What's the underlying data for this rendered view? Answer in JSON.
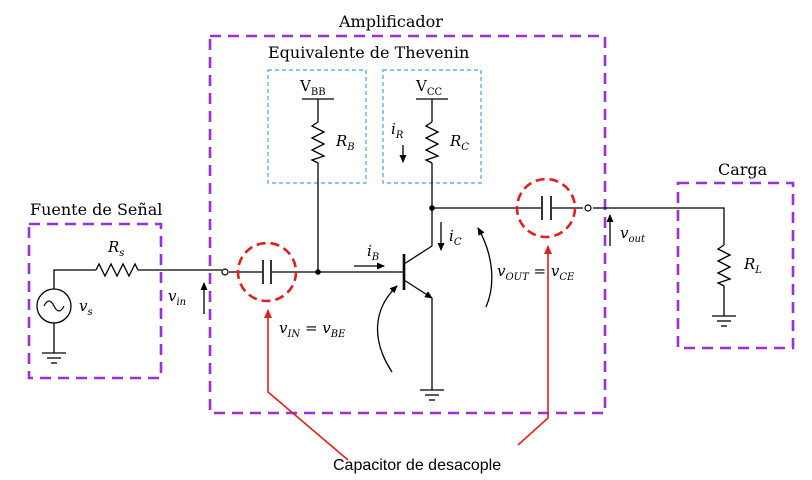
{
  "labels": {
    "amplifier": "Amplificador",
    "thevenin": "Equivalente de Thevenin",
    "signal_source": "Fuente de Señal",
    "load": "Carga",
    "decoupling_capacitor": "Capacitor de desacople"
  },
  "symbols": {
    "vbb": {
      "main": "V",
      "sub": "BB"
    },
    "vcc": {
      "main": "V",
      "sub": "CC"
    },
    "rb": {
      "main": "R",
      "sub": "B"
    },
    "rc": {
      "main": "R",
      "sub": "C"
    },
    "ir": {
      "main": "i",
      "sub": "R"
    },
    "rs": {
      "main": "R",
      "sub": "s"
    },
    "vs": {
      "main": "v",
      "sub": "s"
    },
    "vin": {
      "main": "v",
      "sub": "in"
    },
    "ib": {
      "main": "i",
      "sub": "B"
    },
    "ic": {
      "main": "i",
      "sub": "C"
    },
    "vin_eq": {
      "a": "v",
      "a_sub": "IN",
      "eq": " = ",
      "b": "v",
      "b_sub": "BE"
    },
    "vout_eq": {
      "a": "v",
      "a_sub": "OUT",
      "eq": " = ",
      "b": "v",
      "b_sub": "CE"
    },
    "vout": {
      "main": "v",
      "sub": "out"
    },
    "rl": {
      "main": "R",
      "sub": "L"
    }
  },
  "colors": {
    "block_border": "#9b30d9",
    "thevenin_border": "#4aa3df",
    "capacitor_highlight": "#e02020",
    "wire": "#000000"
  }
}
